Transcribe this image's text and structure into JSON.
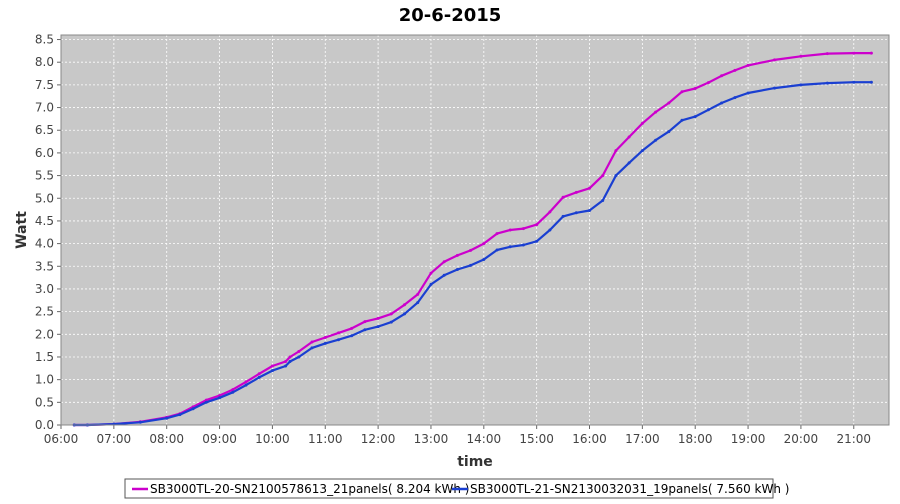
{
  "chart_data": {
    "type": "line",
    "title": "20-6-2015",
    "xlabel": "time",
    "ylabel": "Watt",
    "xlim": [
      "06:00",
      "21:40"
    ],
    "ylim": [
      0,
      8.6
    ],
    "x_ticks": [
      "06:00",
      "07:00",
      "08:00",
      "09:00",
      "10:00",
      "11:00",
      "12:00",
      "13:00",
      "14:00",
      "15:00",
      "16:00",
      "17:00",
      "18:00",
      "19:00",
      "20:00",
      "21:00"
    ],
    "y_ticks": [
      "0.0",
      "0.5",
      "1.0",
      "1.5",
      "2.0",
      "2.5",
      "3.0",
      "3.5",
      "4.0",
      "4.5",
      "5.0",
      "5.5",
      "6.0",
      "6.5",
      "7.0",
      "7.5",
      "8.0",
      "8.5"
    ],
    "grid": true,
    "background": "#c8c8c8",
    "legend_position": "bottom",
    "x": [
      "06:15",
      "06:30",
      "07:00",
      "07:30",
      "08:00",
      "08:15",
      "08:30",
      "08:45",
      "09:00",
      "09:15",
      "09:30",
      "09:45",
      "10:00",
      "10:15",
      "10:20",
      "10:30",
      "10:45",
      "11:00",
      "11:15",
      "11:30",
      "11:45",
      "12:00",
      "12:15",
      "12:30",
      "12:45",
      "13:00",
      "13:15",
      "13:30",
      "13:45",
      "14:00",
      "14:15",
      "14:30",
      "14:45",
      "15:00",
      "15:15",
      "15:30",
      "15:45",
      "16:00",
      "16:15",
      "16:30",
      "16:45",
      "17:00",
      "17:15",
      "17:30",
      "17:45",
      "18:00",
      "18:15",
      "18:30",
      "18:45",
      "19:00",
      "19:30",
      "20:00",
      "20:30",
      "21:00",
      "21:20"
    ],
    "series": [
      {
        "name": "SB3000TL-20-SN2100578613_21panels( 8.204 kWh )",
        "color": "#cc00cc",
        "values": [
          0.0,
          0.0,
          0.02,
          0.07,
          0.17,
          0.25,
          0.4,
          0.55,
          0.65,
          0.78,
          0.95,
          1.13,
          1.3,
          1.4,
          1.5,
          1.62,
          1.83,
          1.93,
          2.03,
          2.13,
          2.28,
          2.35,
          2.45,
          2.65,
          2.88,
          3.35,
          3.6,
          3.74,
          3.85,
          4.0,
          4.22,
          4.3,
          4.33,
          4.42,
          4.7,
          5.02,
          5.13,
          5.22,
          5.5,
          6.05,
          6.35,
          6.65,
          6.9,
          7.1,
          7.35,
          7.42,
          7.55,
          7.7,
          7.82,
          7.93,
          8.05,
          8.13,
          8.19,
          8.2,
          8.2
        ]
      },
      {
        "name": "SB3000TL-21-SN2130032031_19panels( 7.560 kWh )",
        "color": "#1a3fd1",
        "values": [
          0.0,
          0.0,
          0.02,
          0.06,
          0.15,
          0.23,
          0.36,
          0.5,
          0.6,
          0.72,
          0.88,
          1.05,
          1.2,
          1.3,
          1.4,
          1.5,
          1.7,
          1.8,
          1.88,
          1.97,
          2.1,
          2.17,
          2.27,
          2.45,
          2.7,
          3.1,
          3.3,
          3.43,
          3.52,
          3.65,
          3.86,
          3.93,
          3.97,
          4.05,
          4.3,
          4.6,
          4.68,
          4.73,
          4.95,
          5.5,
          5.78,
          6.05,
          6.28,
          6.47,
          6.72,
          6.8,
          6.95,
          7.1,
          7.22,
          7.32,
          7.43,
          7.5,
          7.54,
          7.56,
          7.56
        ]
      }
    ]
  }
}
